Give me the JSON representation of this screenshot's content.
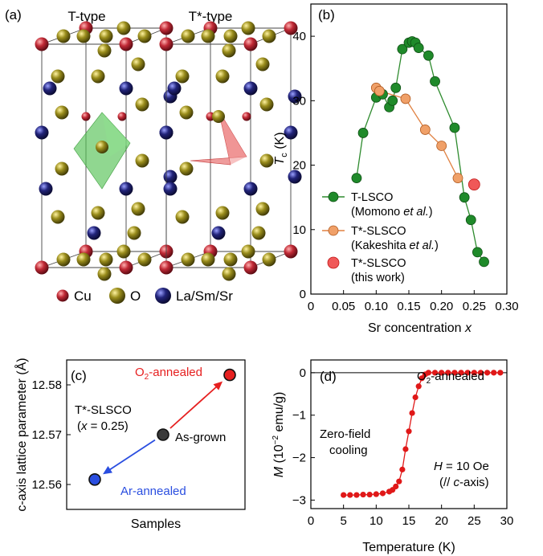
{
  "panels": {
    "a": {
      "label": "(a)",
      "structures": [
        "T-type",
        "T*-type"
      ],
      "legend": [
        {
          "name": "Cu",
          "color": "#b3202e"
        },
        {
          "name": "O",
          "color": "#8f8416"
        },
        {
          "name": "La/Sm/Sr",
          "color": "#1d1f6e"
        }
      ],
      "polyhedra": {
        "T-type": "#55c255",
        "T*-type": "#e45a5a"
      }
    }
  },
  "chart_data": [
    {
      "panel": "(b)",
      "type": "line",
      "xlabel_prefix": "Sr concentration ",
      "xlabel_var": "x",
      "ylabel_var": "T",
      "ylabel_sub": "c",
      "ylabel_unit": " (K)",
      "xlim": [
        0,
        0.3
      ],
      "ylim": [
        0,
        45
      ],
      "xticks": [
        "0",
        "0.05",
        "0.10",
        "0.15",
        "0.20",
        "0.25",
        "0.30"
      ],
      "yticks": [
        "0",
        "10",
        "20",
        "30",
        "40"
      ],
      "series": [
        {
          "name": "T-LSCO",
          "note_pre": "(Momono ",
          "note_it": "et al.",
          "note_post": ")",
          "color": "#2e8b2e",
          "fill": "#1f8a2a",
          "x": [
            0.07,
            0.08,
            0.1,
            0.11,
            0.12,
            0.125,
            0.13,
            0.14,
            0.15,
            0.155,
            0.16,
            0.165,
            0.18,
            0.19,
            0.22,
            0.235,
            0.245,
            0.255,
            0.265
          ],
          "y": [
            18,
            25,
            30.5,
            31,
            29,
            30,
            32,
            38,
            39,
            39.2,
            39,
            38.2,
            37,
            33,
            25.8,
            15,
            11.5,
            6.5,
            5
          ]
        },
        {
          "name": "T*-SLSCO",
          "note_pre": "(Kakeshita ",
          "note_it": "et al.",
          "note_post": ")",
          "color": "#e08040",
          "fill": "#f0a068",
          "x": [
            0.1,
            0.105,
            0.145,
            0.175,
            0.2,
            0.225
          ],
          "y": [
            32,
            31.5,
            30.3,
            25.5,
            23,
            18
          ]
        },
        {
          "name": "T*-SLSCO",
          "note_pre": "(this work)",
          "note_it": "",
          "note_post": "",
          "color": "#d42020",
          "fill": "#f05858",
          "x": [
            0.25
          ],
          "y": [
            17
          ]
        }
      ]
    },
    {
      "panel": "(c)",
      "type": "scatter",
      "xlabel": "Samples",
      "ylabel": "c-axis lattice parameter (Å)",
      "ylim": [
        12.555,
        12.585
      ],
      "yticks": [
        "12.56",
        "12.57",
        "12.58"
      ],
      "sample_label": "T*-SLSCO",
      "sample_x_pre": "(",
      "sample_x_var": "x",
      "sample_x_post": " = 0.25)",
      "points": [
        {
          "name": "O",
          "name_sub": "2",
          "name_post": "-annealed",
          "value": 12.582,
          "color": "#e62020"
        },
        {
          "name": "As-grown",
          "name_sub": "",
          "name_post": "",
          "value": 12.57,
          "color": "#3a3a3a"
        },
        {
          "name": "Ar-annealed",
          "name_sub": "",
          "name_post": "",
          "value": 12.561,
          "color": "#2a4ee0"
        }
      ]
    },
    {
      "panel": "(d)",
      "type": "line",
      "xlabel": "Temperature (K)",
      "ylabel_var": "M",
      "ylabel_pre": " (10",
      "ylabel_sup": "−2",
      "ylabel_post": " emu/g)",
      "xlim": [
        0,
        30
      ],
      "ylim": [
        -3.2,
        0.3
      ],
      "xticks": [
        "0",
        "5",
        "10",
        "15",
        "20",
        "25",
        "30"
      ],
      "yticks": [
        "−3",
        "−2",
        "−1",
        "0"
      ],
      "title_main": "O",
      "title_sub": "2",
      "title_post": "-annealed",
      "note1": "Zero-field",
      "note2": "cooling",
      "field_var": "H",
      "field_val": " = 10 Oe",
      "field_dir_pre": "(// ",
      "field_dir_var": "c",
      "field_dir_post": "-axis)",
      "series": [
        {
          "color": "#e01818",
          "x": [
            5,
            6,
            7,
            8,
            9,
            10,
            11,
            12,
            12.5,
            13,
            13.5,
            14,
            14.5,
            15,
            15.5,
            16,
            16.5,
            17,
            17.5,
            18,
            19,
            20,
            21,
            22,
            23,
            24,
            25,
            26,
            27,
            28,
            29
          ],
          "y": [
            -2.88,
            -2.88,
            -2.88,
            -2.87,
            -2.87,
            -2.86,
            -2.84,
            -2.8,
            -2.76,
            -2.68,
            -2.56,
            -2.28,
            -1.8,
            -1.38,
            -0.95,
            -0.58,
            -0.32,
            -0.13,
            -0.04,
            0,
            0,
            0,
            0,
            0,
            0,
            0,
            0,
            0,
            0,
            0,
            0
          ]
        }
      ]
    }
  ]
}
